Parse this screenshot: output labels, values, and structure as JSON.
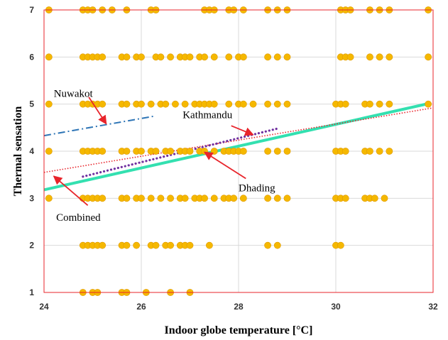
{
  "chart_data": {
    "type": "scatter",
    "xlabel": "Indoor globe temperature [°C]",
    "ylabel": "Thermal sensation",
    "xlim": [
      24,
      32
    ],
    "ylim": [
      1,
      7
    ],
    "xticks": [
      24,
      26,
      28,
      30,
      32
    ],
    "yticks": [
      1,
      2,
      3,
      4,
      5,
      6,
      7
    ],
    "grid": true,
    "legend": "none",
    "colors": {
      "points": "#F5B800",
      "point_edge": "#E09A00",
      "frame": "#E8242B",
      "grid": "#D9D9D9",
      "combined": "#E8242B",
      "kathmandu": "#7030A0",
      "nuwakot": "#2E75B6",
      "dhading": "#33E0B0",
      "arrow": "#E8242B"
    },
    "points": [
      {
        "x": 24.1,
        "y": 7
      },
      {
        "x": 24.8,
        "y": 7
      },
      {
        "x": 24.9,
        "y": 7
      },
      {
        "x": 25.0,
        "y": 7
      },
      {
        "x": 25.2,
        "y": 7
      },
      {
        "x": 25.4,
        "y": 7
      },
      {
        "x": 25.7,
        "y": 7
      },
      {
        "x": 26.2,
        "y": 7
      },
      {
        "x": 26.3,
        "y": 7
      },
      {
        "x": 27.3,
        "y": 7
      },
      {
        "x": 27.4,
        "y": 7
      },
      {
        "x": 27.5,
        "y": 7
      },
      {
        "x": 27.8,
        "y": 7
      },
      {
        "x": 27.9,
        "y": 7
      },
      {
        "x": 28.1,
        "y": 7
      },
      {
        "x": 28.6,
        "y": 7
      },
      {
        "x": 28.8,
        "y": 7
      },
      {
        "x": 29.0,
        "y": 7
      },
      {
        "x": 30.1,
        "y": 7
      },
      {
        "x": 30.2,
        "y": 7
      },
      {
        "x": 30.3,
        "y": 7
      },
      {
        "x": 30.7,
        "y": 7
      },
      {
        "x": 30.9,
        "y": 7
      },
      {
        "x": 31.1,
        "y": 7
      },
      {
        "x": 31.9,
        "y": 7
      },
      {
        "x": 24.1,
        "y": 6
      },
      {
        "x": 24.8,
        "y": 6
      },
      {
        "x": 24.9,
        "y": 6
      },
      {
        "x": 25.0,
        "y": 6
      },
      {
        "x": 25.1,
        "y": 6
      },
      {
        "x": 25.2,
        "y": 6
      },
      {
        "x": 25.6,
        "y": 6
      },
      {
        "x": 25.7,
        "y": 6
      },
      {
        "x": 25.9,
        "y": 6
      },
      {
        "x": 26.0,
        "y": 6
      },
      {
        "x": 26.3,
        "y": 6
      },
      {
        "x": 26.4,
        "y": 6
      },
      {
        "x": 26.6,
        "y": 6
      },
      {
        "x": 26.8,
        "y": 6
      },
      {
        "x": 26.9,
        "y": 6
      },
      {
        "x": 27.0,
        "y": 6
      },
      {
        "x": 27.2,
        "y": 6
      },
      {
        "x": 27.3,
        "y": 6
      },
      {
        "x": 27.5,
        "y": 6
      },
      {
        "x": 27.8,
        "y": 6
      },
      {
        "x": 28.0,
        "y": 6
      },
      {
        "x": 28.1,
        "y": 6
      },
      {
        "x": 28.6,
        "y": 6
      },
      {
        "x": 28.8,
        "y": 6
      },
      {
        "x": 29.0,
        "y": 6
      },
      {
        "x": 30.1,
        "y": 6
      },
      {
        "x": 30.2,
        "y": 6
      },
      {
        "x": 30.3,
        "y": 6
      },
      {
        "x": 30.7,
        "y": 6
      },
      {
        "x": 30.9,
        "y": 6
      },
      {
        "x": 31.1,
        "y": 6
      },
      {
        "x": 31.9,
        "y": 6
      },
      {
        "x": 24.1,
        "y": 5
      },
      {
        "x": 24.8,
        "y": 5
      },
      {
        "x": 24.9,
        "y": 5
      },
      {
        "x": 25.0,
        "y": 5
      },
      {
        "x": 25.1,
        "y": 5
      },
      {
        "x": 25.2,
        "y": 5
      },
      {
        "x": 25.6,
        "y": 5
      },
      {
        "x": 25.7,
        "y": 5
      },
      {
        "x": 25.9,
        "y": 5
      },
      {
        "x": 26.0,
        "y": 5
      },
      {
        "x": 26.2,
        "y": 5
      },
      {
        "x": 26.4,
        "y": 5
      },
      {
        "x": 26.5,
        "y": 5
      },
      {
        "x": 26.7,
        "y": 5
      },
      {
        "x": 26.9,
        "y": 5
      },
      {
        "x": 27.1,
        "y": 5
      },
      {
        "x": 27.2,
        "y": 5
      },
      {
        "x": 27.3,
        "y": 5
      },
      {
        "x": 27.4,
        "y": 5
      },
      {
        "x": 27.5,
        "y": 5
      },
      {
        "x": 27.8,
        "y": 5
      },
      {
        "x": 28.0,
        "y": 5
      },
      {
        "x": 28.1,
        "y": 5
      },
      {
        "x": 28.3,
        "y": 5
      },
      {
        "x": 28.6,
        "y": 5
      },
      {
        "x": 28.8,
        "y": 5
      },
      {
        "x": 29.0,
        "y": 5
      },
      {
        "x": 30.0,
        "y": 5
      },
      {
        "x": 30.1,
        "y": 5
      },
      {
        "x": 30.2,
        "y": 5
      },
      {
        "x": 30.6,
        "y": 5
      },
      {
        "x": 30.7,
        "y": 5
      },
      {
        "x": 30.9,
        "y": 5
      },
      {
        "x": 31.1,
        "y": 5
      },
      {
        "x": 31.9,
        "y": 5
      },
      {
        "x": 24.1,
        "y": 4
      },
      {
        "x": 24.8,
        "y": 4
      },
      {
        "x": 24.9,
        "y": 4
      },
      {
        "x": 25.0,
        "y": 4
      },
      {
        "x": 25.1,
        "y": 4
      },
      {
        "x": 25.2,
        "y": 4
      },
      {
        "x": 25.6,
        "y": 4
      },
      {
        "x": 25.7,
        "y": 4
      },
      {
        "x": 25.9,
        "y": 4
      },
      {
        "x": 26.0,
        "y": 4
      },
      {
        "x": 26.2,
        "y": 4
      },
      {
        "x": 26.3,
        "y": 4
      },
      {
        "x": 26.5,
        "y": 4
      },
      {
        "x": 26.6,
        "y": 4
      },
      {
        "x": 26.8,
        "y": 4
      },
      {
        "x": 26.9,
        "y": 4
      },
      {
        "x": 27.0,
        "y": 4
      },
      {
        "x": 27.2,
        "y": 4
      },
      {
        "x": 27.3,
        "y": 4
      },
      {
        "x": 27.5,
        "y": 4
      },
      {
        "x": 27.7,
        "y": 4
      },
      {
        "x": 27.8,
        "y": 4
      },
      {
        "x": 27.9,
        "y": 4
      },
      {
        "x": 28.0,
        "y": 4
      },
      {
        "x": 28.1,
        "y": 4
      },
      {
        "x": 28.6,
        "y": 4
      },
      {
        "x": 28.8,
        "y": 4
      },
      {
        "x": 29.0,
        "y": 4
      },
      {
        "x": 30.0,
        "y": 4
      },
      {
        "x": 30.1,
        "y": 4
      },
      {
        "x": 30.2,
        "y": 4
      },
      {
        "x": 30.6,
        "y": 4
      },
      {
        "x": 30.7,
        "y": 4
      },
      {
        "x": 30.9,
        "y": 4
      },
      {
        "x": 31.1,
        "y": 4
      },
      {
        "x": 24.1,
        "y": 3
      },
      {
        "x": 24.8,
        "y": 3
      },
      {
        "x": 24.9,
        "y": 3
      },
      {
        "x": 25.0,
        "y": 3
      },
      {
        "x": 25.1,
        "y": 3
      },
      {
        "x": 25.2,
        "y": 3
      },
      {
        "x": 25.6,
        "y": 3
      },
      {
        "x": 25.7,
        "y": 3
      },
      {
        "x": 25.9,
        "y": 3
      },
      {
        "x": 26.0,
        "y": 3
      },
      {
        "x": 26.2,
        "y": 3
      },
      {
        "x": 26.4,
        "y": 3
      },
      {
        "x": 26.6,
        "y": 3
      },
      {
        "x": 26.8,
        "y": 3
      },
      {
        "x": 26.9,
        "y": 3
      },
      {
        "x": 27.1,
        "y": 3
      },
      {
        "x": 27.2,
        "y": 3
      },
      {
        "x": 27.3,
        "y": 3
      },
      {
        "x": 27.5,
        "y": 3
      },
      {
        "x": 27.7,
        "y": 3
      },
      {
        "x": 27.8,
        "y": 3
      },
      {
        "x": 27.9,
        "y": 3
      },
      {
        "x": 28.1,
        "y": 3
      },
      {
        "x": 28.6,
        "y": 3
      },
      {
        "x": 28.8,
        "y": 3
      },
      {
        "x": 29.0,
        "y": 3
      },
      {
        "x": 30.0,
        "y": 3
      },
      {
        "x": 30.1,
        "y": 3
      },
      {
        "x": 30.2,
        "y": 3
      },
      {
        "x": 30.6,
        "y": 3
      },
      {
        "x": 30.7,
        "y": 3
      },
      {
        "x": 30.8,
        "y": 3
      },
      {
        "x": 31.0,
        "y": 3
      },
      {
        "x": 24.8,
        "y": 2
      },
      {
        "x": 24.9,
        "y": 2
      },
      {
        "x": 25.0,
        "y": 2
      },
      {
        "x": 25.1,
        "y": 2
      },
      {
        "x": 25.2,
        "y": 2
      },
      {
        "x": 25.6,
        "y": 2
      },
      {
        "x": 25.7,
        "y": 2
      },
      {
        "x": 25.9,
        "y": 2
      },
      {
        "x": 26.2,
        "y": 2
      },
      {
        "x": 26.3,
        "y": 2
      },
      {
        "x": 26.5,
        "y": 2
      },
      {
        "x": 26.6,
        "y": 2
      },
      {
        "x": 26.8,
        "y": 2
      },
      {
        "x": 26.9,
        "y": 2
      },
      {
        "x": 27.0,
        "y": 2
      },
      {
        "x": 27.4,
        "y": 2
      },
      {
        "x": 28.6,
        "y": 2
      },
      {
        "x": 28.8,
        "y": 2
      },
      {
        "x": 30.0,
        "y": 2
      },
      {
        "x": 30.1,
        "y": 2
      },
      {
        "x": 24.8,
        "y": 1
      },
      {
        "x": 25.0,
        "y": 1
      },
      {
        "x": 25.1,
        "y": 1
      },
      {
        "x": 25.6,
        "y": 1
      },
      {
        "x": 25.7,
        "y": 1
      },
      {
        "x": 26.1,
        "y": 1
      },
      {
        "x": 26.6,
        "y": 1
      },
      {
        "x": 27.0,
        "y": 1
      }
    ],
    "lines": [
      {
        "name": "Combined",
        "style": "dotted",
        "x": [
          24.0,
          32.0
        ],
        "y": [
          3.55,
          4.92
        ]
      },
      {
        "name": "Kathmandu",
        "style": "dotted-heavy",
        "x": [
          24.8,
          28.8
        ],
        "y": [
          3.46,
          4.48
        ]
      },
      {
        "name": "Nuwakot",
        "style": "dash-dot",
        "x": [
          24.0,
          26.3
        ],
        "y": [
          4.33,
          4.75
        ]
      },
      {
        "name": "Dhading",
        "style": "solid-thick",
        "x": [
          24.0,
          31.9
        ],
        "y": [
          3.18,
          5.01
        ]
      }
    ],
    "annotations": [
      {
        "text": "Nuwakot",
        "x": 24.2,
        "y": 5.15,
        "arrow_from": [
          24.92,
          5.15
        ],
        "arrow_to": [
          25.28,
          4.58
        ]
      },
      {
        "text": "Kathmandu",
        "x": 26.85,
        "y": 4.7,
        "arrow_from": [
          27.85,
          4.54
        ],
        "arrow_to": [
          28.3,
          4.35
        ]
      },
      {
        "text": "Dhading",
        "x": 28.0,
        "y": 3.15,
        "arrow_from": [
          28.15,
          3.42
        ],
        "arrow_to": [
          27.3,
          3.98
        ]
      },
      {
        "text": "Combined",
        "x": 24.25,
        "y": 2.52,
        "arrow_from": [
          24.9,
          2.85
        ],
        "arrow_to": [
          24.2,
          3.47
        ]
      }
    ]
  }
}
